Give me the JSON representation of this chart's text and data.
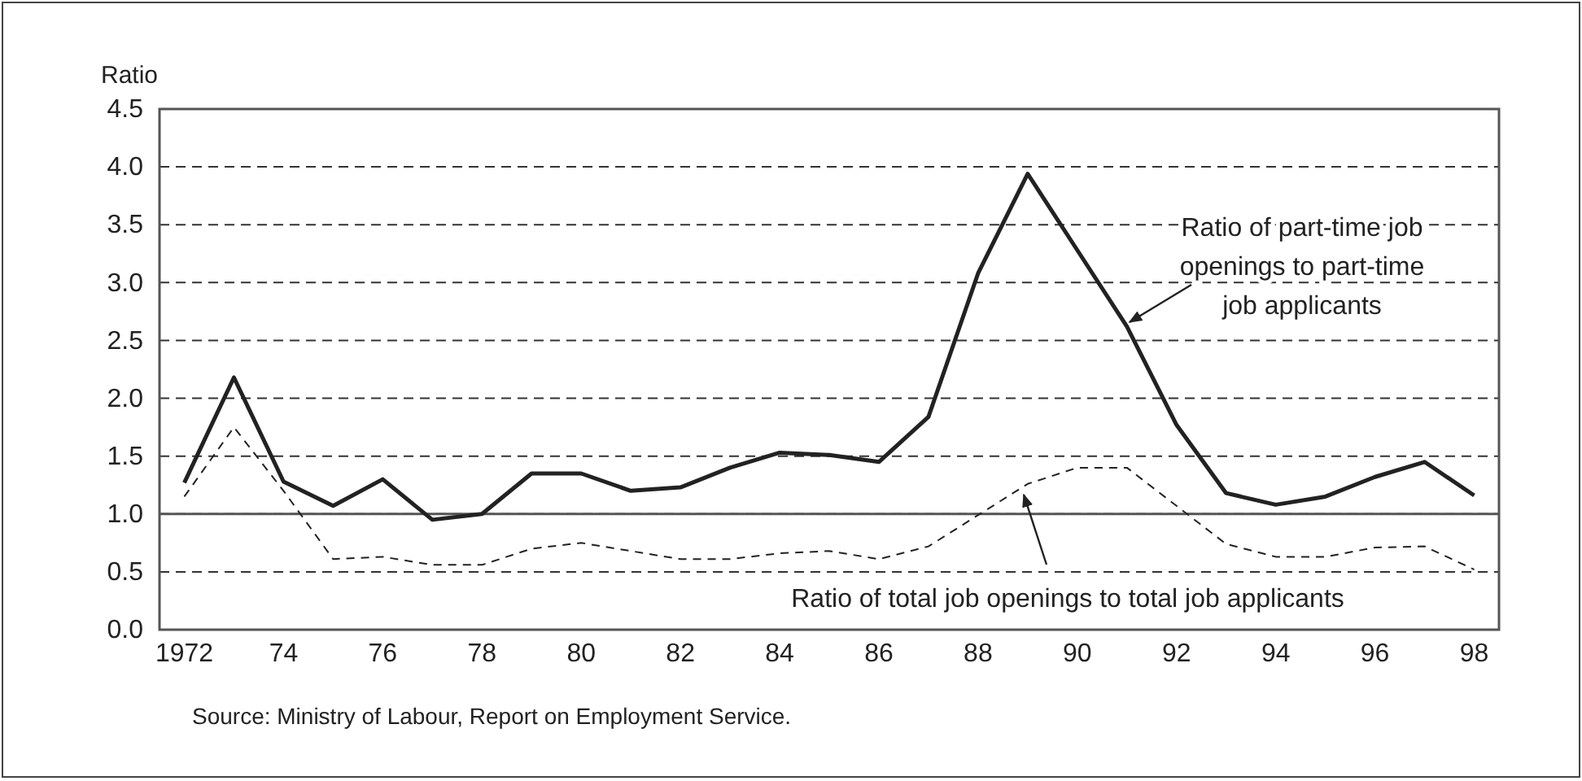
{
  "chart_data": {
    "type": "line",
    "ylabel": "Ratio",
    "x": [
      1972,
      1973,
      1974,
      1975,
      1976,
      1977,
      1978,
      1979,
      1980,
      1981,
      1982,
      1983,
      1984,
      1985,
      1986,
      1987,
      1988,
      1989,
      1990,
      1991,
      1992,
      1993,
      1994,
      1995,
      1996,
      1997,
      1998
    ],
    "series": [
      {
        "name": "Ratio of part-time job openings to part-time job applicants",
        "color": "#222222",
        "line_style": "solid",
        "values": [
          1.27,
          2.18,
          1.28,
          1.07,
          1.3,
          0.95,
          1.0,
          1.35,
          1.35,
          1.2,
          1.23,
          1.4,
          1.53,
          1.51,
          1.45,
          1.84,
          3.08,
          3.94,
          3.28,
          2.62,
          1.77,
          1.18,
          1.08,
          1.15,
          1.32,
          1.45,
          1.16
        ]
      },
      {
        "name": "Ratio of total job openings to total job applicants",
        "color": "#222222",
        "line_style": "dashed",
        "values": [
          1.15,
          1.75,
          1.2,
          0.61,
          0.63,
          0.56,
          0.56,
          0.7,
          0.75,
          0.68,
          0.61,
          0.61,
          0.66,
          0.68,
          0.61,
          0.72,
          0.99,
          1.26,
          1.4,
          1.4,
          1.07,
          0.74,
          0.63,
          0.63,
          0.71,
          0.72,
          0.52
        ]
      }
    ],
    "xlim": [
      1971.5,
      1998.5
    ],
    "xticks": [
      {
        "value": 1972,
        "label": "1972"
      },
      {
        "value": 1974,
        "label": "74"
      },
      {
        "value": 1976,
        "label": "76"
      },
      {
        "value": 1978,
        "label": "78"
      },
      {
        "value": 1980,
        "label": "80"
      },
      {
        "value": 1982,
        "label": "82"
      },
      {
        "value": 1984,
        "label": "84"
      },
      {
        "value": 1986,
        "label": "86"
      },
      {
        "value": 1988,
        "label": "88"
      },
      {
        "value": 1990,
        "label": "90"
      },
      {
        "value": 1992,
        "label": "92"
      },
      {
        "value": 1994,
        "label": "94"
      },
      {
        "value": 1996,
        "label": "96"
      },
      {
        "value": 1998,
        "label": "98"
      }
    ],
    "ylim": [
      0,
      4.5
    ],
    "yticks": [
      {
        "value": 0,
        "label": "0.0"
      },
      {
        "value": 0.5,
        "label": "0.5"
      },
      {
        "value": 1,
        "label": "1.0"
      },
      {
        "value": 1.5,
        "label": "1.5"
      },
      {
        "value": 2,
        "label": "2.0"
      },
      {
        "value": 2.5,
        "label": "2.5"
      },
      {
        "value": 3,
        "label": "3.0"
      },
      {
        "value": 3.5,
        "label": "3.5"
      },
      {
        "value": 4,
        "label": "4.0"
      },
      {
        "value": 4.5,
        "label": "4.5"
      }
    ],
    "grid": "y",
    "ref_lines": [
      {
        "axis": "y",
        "value": 1,
        "color": "#555555",
        "line_style": "solid"
      }
    ],
    "legend": false,
    "annotations": [
      "Source: Ministry of Labour, Report on Employment Service."
    ]
  }
}
